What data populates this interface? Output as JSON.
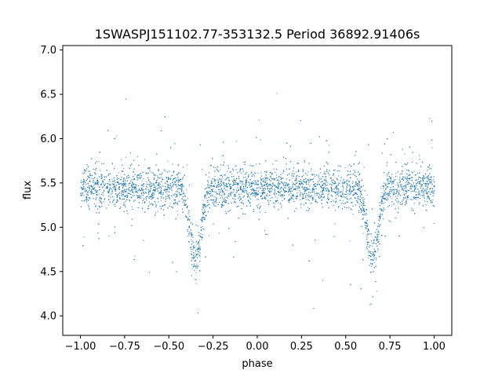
{
  "chart_data": {
    "type": "scatter",
    "title": "1SWASPJ151102.77-353132.5 Period 36892.91406s",
    "xlabel": "phase",
    "ylabel": "flux",
    "xlim": [
      -1.1,
      1.1
    ],
    "ylim": [
      3.78,
      7.05
    ],
    "xticks": [
      -1.0,
      -0.75,
      -0.5,
      -0.25,
      0.0,
      0.25,
      0.5,
      0.75,
      1.0
    ],
    "xtick_labels": [
      "−1.00",
      "−0.75",
      "−0.50",
      "−0.25",
      "0.00",
      "0.25",
      "0.50",
      "0.75",
      "1.00"
    ],
    "yticks": [
      4.0,
      4.5,
      5.0,
      5.5,
      6.0,
      6.5,
      7.0
    ],
    "ytick_labels": [
      "4.0",
      "4.5",
      "5.0",
      "5.5",
      "6.0",
      "6.5",
      "7.0"
    ],
    "grid": false,
    "point_color": "#1f77b4",
    "series": [
      {
        "baseline_flux": 5.45,
        "eclipses": [
          {
            "phase_center": -0.35,
            "min_flux": 4.65
          },
          {
            "phase_center": 0.65,
            "min_flux": 4.65
          }
        ],
        "phase_range": [
          -1.0,
          1.0
        ]
      }
    ]
  }
}
